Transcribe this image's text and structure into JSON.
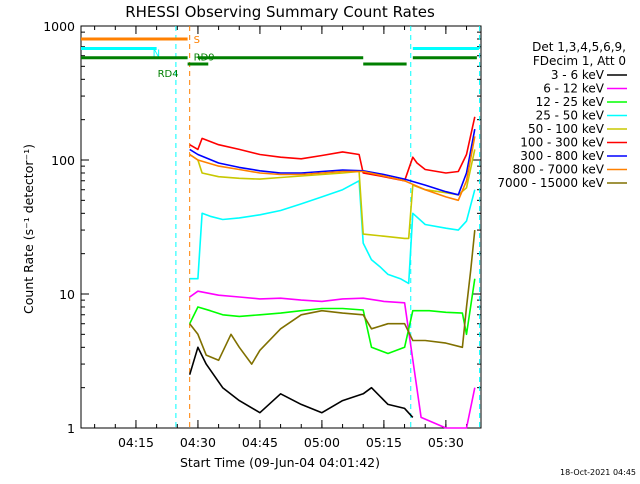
{
  "chart_data": {
    "type": "line",
    "title": "RHESSI Observing Summary Count Rates",
    "xlabel": "Start Time (09-Jun-04 04:01:42)",
    "ylabel": "Count Rate (s⁻¹ detector⁻¹)",
    "y_scale": "log",
    "ylim": [
      1,
      1000
    ],
    "xlim": [
      "04:01:42",
      "05:38:30"
    ],
    "x_ticks": [
      "04:15",
      "04:30",
      "04:45",
      "05:00",
      "05:15",
      "05:30"
    ],
    "y_ticks": [
      "1",
      "10",
      "100",
      "1000"
    ],
    "legend_header": [
      "Det 1,3,4,5,6,9,",
      "FDecim 1, Att 0"
    ],
    "legend_position": "right",
    "footer_date": "18-Oct-2021 04:45",
    "flags": [
      {
        "label": "S",
        "color": "#ff8000",
        "y": 800,
        "segments": [
          [
            "04:01:42",
            "04:27:30"
          ]
        ]
      },
      {
        "label": "N",
        "color": "#00ffff",
        "y": 680,
        "segments": [
          [
            "04:01:42",
            "04:20:00"
          ],
          [
            "05:22:00",
            "05:38:00"
          ]
        ]
      },
      {
        "label": "RD9",
        "color": "#007f00",
        "y": 580,
        "segments": [
          [
            "04:01:42",
            "04:27:30"
          ],
          [
            "04:30:00",
            "05:10:00"
          ],
          [
            "05:22:00",
            "05:37:30"
          ]
        ]
      },
      {
        "label": "RD4",
        "color": "#007f00",
        "y": 520,
        "segments": [
          [
            "04:27:30",
            "04:32:30"
          ],
          [
            "05:10:00",
            "05:20:30"
          ]
        ]
      }
    ],
    "vlines": [
      {
        "x": "04:24:40",
        "color": "#00ffff"
      },
      {
        "x": "04:28:00",
        "color": "#ff8000"
      },
      {
        "x": "05:21:30",
        "color": "#00ffff"
      },
      {
        "x": "05:38:10",
        "color": "#00ffff"
      }
    ],
    "series": [
      {
        "name": "3 - 6 keV",
        "color": "#000000",
        "x": [
          "04:28",
          "04:30",
          "04:32",
          "04:36",
          "04:40",
          "04:45",
          "04:50",
          "04:55",
          "05:00",
          "05:05",
          "05:10",
          "05:12",
          "05:16",
          "05:20",
          "05:22"
        ],
        "values": [
          2.5,
          4.0,
          3.0,
          2.0,
          1.6,
          1.3,
          1.8,
          1.5,
          1.3,
          1.6,
          1.8,
          2.0,
          1.5,
          1.4,
          1.2
        ]
      },
      {
        "name": "6 - 12 keV",
        "color": "#ff00ff",
        "x": [
          "04:28",
          "04:30",
          "04:35",
          "04:40",
          "04:45",
          "04:50",
          "04:55",
          "05:00",
          "05:05",
          "05:10",
          "05:15",
          "05:20",
          "05:24",
          "05:30",
          "05:35",
          "05:37"
        ],
        "values": [
          9.5,
          10.5,
          9.8,
          9.5,
          9.2,
          9.3,
          9.0,
          8.8,
          9.2,
          9.3,
          8.8,
          8.6,
          1.2,
          1.0,
          1.0,
          2.0
        ]
      },
      {
        "name": "12 - 25 keV",
        "color": "#00ff00",
        "x": [
          "04:28",
          "04:30",
          "04:33",
          "04:36",
          "04:40",
          "04:45",
          "04:50",
          "04:55",
          "05:00",
          "05:05",
          "05:10",
          "05:12",
          "05:16",
          "05:20",
          "05:22",
          "05:26",
          "05:30",
          "05:34",
          "05:35",
          "05:37"
        ],
        "values": [
          6.0,
          8.0,
          7.5,
          7.0,
          6.8,
          7.0,
          7.2,
          7.5,
          7.8,
          7.8,
          7.6,
          4.0,
          3.6,
          4.0,
          7.5,
          7.5,
          7.3,
          7.2,
          5.0,
          13.0
        ]
      },
      {
        "name": "25 - 50 keV",
        "color": "#00ffff",
        "x": [
          "04:28",
          "04:30",
          "04:31",
          "04:33",
          "04:36",
          "04:40",
          "04:45",
          "04:50",
          "04:55",
          "05:00",
          "05:05",
          "05:09",
          "05:10",
          "05:12",
          "05:14",
          "05:16",
          "05:19",
          "05:21",
          "05:22",
          "05:25",
          "05:30",
          "05:33",
          "05:35",
          "05:37"
        ],
        "values": [
          13.0,
          13.0,
          40.0,
          38.0,
          36.0,
          37.0,
          39.0,
          42.0,
          47.0,
          53.0,
          60.0,
          70.0,
          24.0,
          18.0,
          16.0,
          14.0,
          13.0,
          12.0,
          40.0,
          33.0,
          31.0,
          30.0,
          35.0,
          60.0
        ]
      },
      {
        "name": "50 - 100 keV",
        "color": "#c8c800",
        "x": [
          "04:28",
          "04:30",
          "04:31",
          "04:35",
          "04:40",
          "04:45",
          "04:50",
          "04:55",
          "05:00",
          "05:05",
          "05:09",
          "05:10",
          "05:15",
          "05:20",
          "05:21",
          "05:22",
          "05:25",
          "05:30",
          "05:33",
          "05:35",
          "05:37"
        ],
        "values": [
          110.0,
          100.0,
          80.0,
          75.0,
          73.0,
          72.0,
          74.0,
          76.0,
          78.0,
          80.0,
          82.0,
          28.0,
          27.0,
          26.0,
          26.0,
          65.0,
          60.0,
          57.0,
          55.0,
          62.0,
          120.0
        ]
      },
      {
        "name": "100 - 300 keV",
        "color": "#ff0000",
        "x": [
          "04:28",
          "04:30",
          "04:31",
          "04:35",
          "04:40",
          "04:45",
          "04:50",
          "04:55",
          "05:00",
          "05:05",
          "05:09",
          "05:10",
          "05:15",
          "05:20",
          "05:22",
          "05:23",
          "05:25",
          "05:30",
          "05:33",
          "05:35",
          "05:37"
        ],
        "values": [
          130.0,
          120.0,
          145.0,
          130.0,
          120.0,
          110.0,
          105.0,
          102.0,
          108.0,
          115.0,
          110.0,
          80.0,
          75.0,
          70.0,
          105.0,
          95.0,
          85.0,
          80.0,
          82.0,
          110.0,
          210.0
        ]
      },
      {
        "name": "300 - 800 keV",
        "color": "#0000ff",
        "x": [
          "04:28",
          "04:30",
          "04:35",
          "04:40",
          "04:45",
          "04:50",
          "04:55",
          "05:00",
          "05:05",
          "05:10",
          "05:15",
          "05:20",
          "05:25",
          "05:30",
          "05:33",
          "05:35",
          "05:37"
        ],
        "values": [
          120.0,
          110.0,
          95.0,
          88.0,
          83.0,
          80.0,
          80.0,
          82.0,
          84.0,
          83.0,
          78.0,
          72.0,
          65.0,
          58.0,
          55.0,
          80.0,
          170.0
        ]
      },
      {
        "name": "800 - 7000 keV",
        "color": "#ff8000",
        "x": [
          "04:28",
          "04:30",
          "04:35",
          "04:40",
          "04:45",
          "04:50",
          "04:55",
          "05:00",
          "05:05",
          "05:10",
          "05:15",
          "05:20",
          "05:25",
          "05:30",
          "05:33",
          "05:35",
          "05:37"
        ],
        "values": [
          110.0,
          100.0,
          90.0,
          85.0,
          80.0,
          78.0,
          78.0,
          80.0,
          82.0,
          82.0,
          76.0,
          70.0,
          60.0,
          53.0,
          50.0,
          70.0,
          150.0
        ]
      },
      {
        "name": "7000 - 15000 keV",
        "color": "#807000",
        "x": [
          "04:28",
          "04:30",
          "04:32",
          "04:35",
          "04:38",
          "04:40",
          "04:43",
          "04:45",
          "04:50",
          "04:55",
          "05:00",
          "05:05",
          "05:10",
          "05:12",
          "05:16",
          "05:20",
          "05:22",
          "05:25",
          "05:30",
          "05:34",
          "05:35",
          "05:36",
          "05:37"
        ],
        "values": [
          6.0,
          5.0,
          3.5,
          3.2,
          5.0,
          4.0,
          3.0,
          3.8,
          5.5,
          7.0,
          7.5,
          7.2,
          7.0,
          5.5,
          6.0,
          6.0,
          4.5,
          4.5,
          4.3,
          4.0,
          8.0,
          15.0,
          30.0
        ]
      }
    ]
  }
}
